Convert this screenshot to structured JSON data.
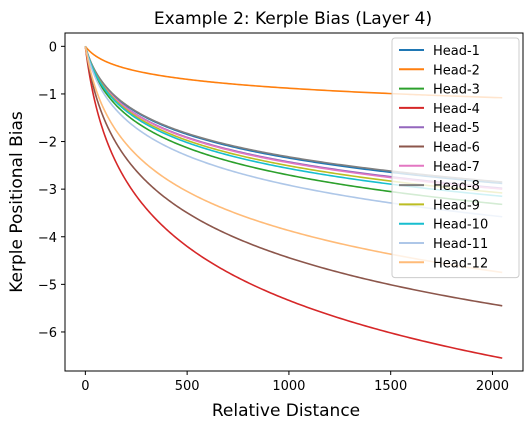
{
  "chart_data": {
    "type": "line",
    "title": "Example 2: Kerple Bias (Layer 4)",
    "xlabel": "Relative Distance",
    "ylabel": "Kerple Positional Bias",
    "xlim": [
      -100,
      2150
    ],
    "ylim": [
      -6.82,
      0.28
    ],
    "xticks": [
      0,
      500,
      1000,
      1500,
      2000
    ],
    "yticks": [
      0,
      -1,
      -2,
      -3,
      -4,
      -5,
      -6
    ],
    "xtick_labels": [
      "0",
      "500",
      "1000",
      "1500",
      "2000"
    ],
    "ytick_labels": [
      "0",
      "−1",
      "−2",
      "−3",
      "−4",
      "−5",
      "−6"
    ],
    "grid": false,
    "legend_position": "upper right",
    "x_max": 2048,
    "series": [
      {
        "name": "Head-1",
        "color": "#1f77b4",
        "end_value": -2.88
      },
      {
        "name": "Head-2",
        "color": "#ff7f0e",
        "end_value": -1.08
      },
      {
        "name": "Head-3",
        "color": "#2ca02c",
        "end_value": -3.32
      },
      {
        "name": "Head-4",
        "color": "#d62728",
        "end_value": -6.55
      },
      {
        "name": "Head-5",
        "color": "#9467bd",
        "end_value": -2.98
      },
      {
        "name": "Head-6",
        "color": "#8c564b",
        "end_value": -5.45
      },
      {
        "name": "Head-7",
        "color": "#e377c2",
        "end_value": -3.0
      },
      {
        "name": "Head-8",
        "color": "#7f7f7f",
        "end_value": -2.85
      },
      {
        "name": "Head-9",
        "color": "#bcbd22",
        "end_value": -3.08
      },
      {
        "name": "Head-10",
        "color": "#17becf",
        "end_value": -3.15
      },
      {
        "name": "Head-11",
        "color": "#aec7e8",
        "end_value": -3.58
      },
      {
        "name": "Head-12",
        "color": "#ffbb78",
        "end_value": -4.75
      }
    ]
  }
}
